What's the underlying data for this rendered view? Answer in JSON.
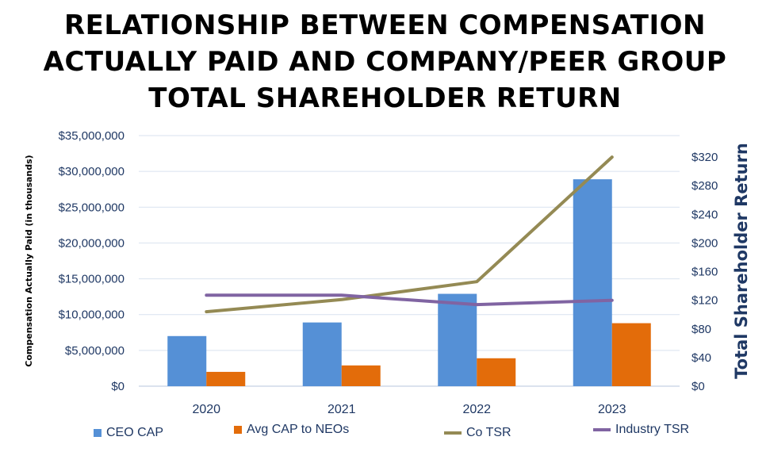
{
  "title": {
    "line1": "RELATIONSHIP BETWEEN COMPENSATION",
    "line2": "ACTUALLY PAID AND COMPANY/PEER GROUP",
    "line3": "TOTAL SHAREHOLDER RETURN"
  },
  "colors": {
    "ceo_cap": "#5590d6",
    "avg_cap": "#e36c0a",
    "co_tsr": "#948a54",
    "industry_tsr": "#8064a2",
    "axis_text": "#1f3864",
    "grid": "#d9e2ef"
  },
  "chart_data": {
    "type": "bar",
    "categories": [
      "2020",
      "2021",
      "2022",
      "2023"
    ],
    "ylabel": "Compensation Actually Paid (in thousands)",
    "y2label": "Total Shareholder Return",
    "ylim": [
      0,
      35000000
    ],
    "y2lim": [
      0,
      350
    ],
    "yticks": [
      "$0",
      "$5,000,000",
      "$10,000,000",
      "$15,000,000",
      "$20,000,000",
      "$25,000,000",
      "$30,000,000",
      "$35,000,000"
    ],
    "y2ticks": [
      "$0",
      "$40",
      "$80",
      "$120",
      "$160",
      "$200",
      "$240",
      "$280",
      "$320"
    ],
    "grid": true,
    "legend_position": "bottom",
    "series": [
      {
        "name": "CEO CAP",
        "type": "bar",
        "axis": "left",
        "values": [
          7000000,
          8900000,
          12900000,
          28900000
        ]
      },
      {
        "name": "Avg CAP to NEOs",
        "type": "bar",
        "axis": "left",
        "values": [
          2000000,
          2900000,
          3900000,
          8800000
        ]
      },
      {
        "name": "Co TSR",
        "type": "line",
        "axis": "right",
        "values": [
          104,
          121,
          146,
          320
        ]
      },
      {
        "name": "Industry TSR",
        "type": "line",
        "axis": "right",
        "values": [
          127,
          127,
          114,
          120
        ]
      }
    ]
  }
}
